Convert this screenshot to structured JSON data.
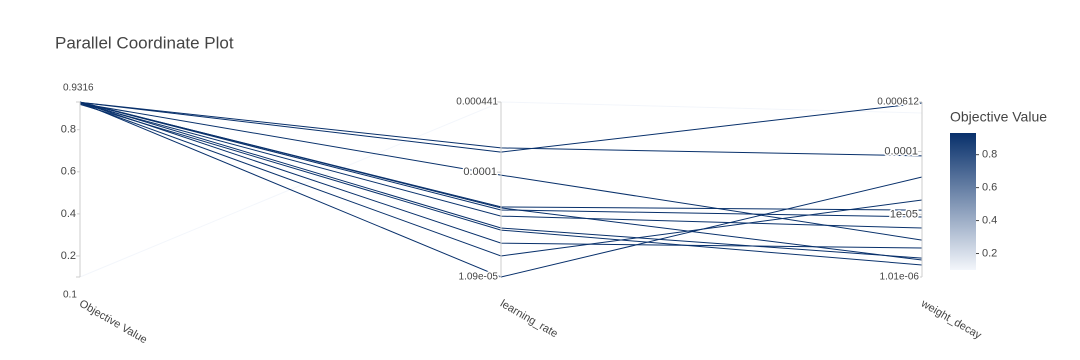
{
  "chart_data": {
    "type": "parcoords",
    "title": "Parallel Coordinate Plot",
    "colorscale": [
      "#f3f6fb",
      "#08306b"
    ],
    "colorbar": {
      "title": "Objective Value",
      "lim": [
        0.1,
        0.9316
      ],
      "ticks": [
        0.2,
        0.4,
        0.6,
        0.8
      ]
    },
    "dimensions": [
      {
        "label": "Objective Value",
        "log": false,
        "range": [
          0.1,
          0.9316
        ],
        "ticks": [
          0.2,
          0.4,
          0.6,
          0.8
        ],
        "values": [
          0.93,
          0.93,
          0.925,
          0.93,
          0.9316,
          0.93,
          0.925,
          0.93,
          0.92,
          0.93,
          0.925,
          0.93,
          0.1
        ]
      },
      {
        "label": "learning_rate",
        "log": true,
        "range": [
          {
            "value": 1.09e-05,
            "label": "1.09e-05"
          },
          0.000441
        ],
        "ticks": [
          0.0001
        ],
        "values": [
          0.000153,
          0.000167,
          9.4e-05,
          4.8e-05,
          4.7e-05,
          4.5e-05,
          3.95e-05,
          3.07e-05,
          2.94e-05,
          2.23e-05,
          1.7e-05,
          1.09e-05,
          0.000441
        ]
      },
      {
        "label": "weight_decay",
        "log": true,
        "range": [
          {
            "value": 1.01e-06,
            "label": "1.01e-06"
          },
          0.000612
        ],
        "ticks": [
          {
            "value": 1e-05,
            "label": "1e-05"
          },
          0.0001
        ],
        "values": [
          0.00059,
          8.5e-05,
          3.9e-06,
          1.17e-05,
          1.88e-06,
          9.1e-06,
          6.07e-06,
          2.02e-06,
          1.57e-06,
          2.92e-06,
          1.69e-05,
          3.93e-05,
          0.000409
        ]
      }
    ]
  }
}
